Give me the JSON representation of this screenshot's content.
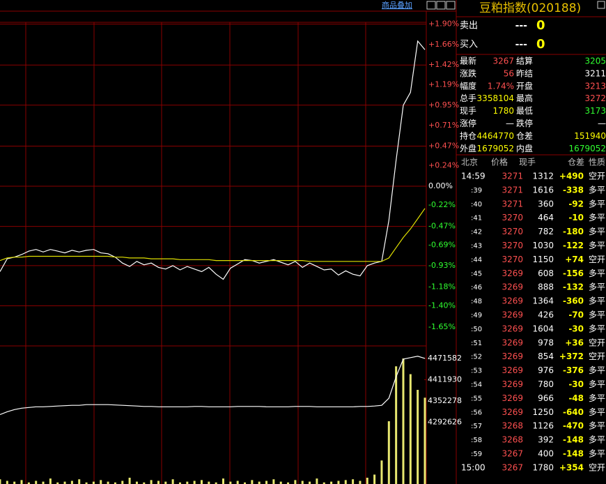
{
  "toolbar": {
    "link": "商品叠加"
  },
  "chart_data": [
    {
      "type": "line",
      "ylim": [
        -1.87,
        1.92
      ],
      "yticks": [
        {
          "value": 1.9,
          "label": "+1.90%"
        },
        {
          "value": 1.66,
          "label": "+1.66%"
        },
        {
          "value": 1.42,
          "label": "+1.42%"
        },
        {
          "value": 1.19,
          "label": "+1.19%"
        },
        {
          "value": 0.95,
          "label": "+0.95%"
        },
        {
          "value": 0.71,
          "label": "+0.71%"
        },
        {
          "value": 0.47,
          "label": "+0.47%"
        },
        {
          "value": 0.24,
          "label": "+0.24%"
        },
        {
          "value": 0,
          "label": "0.00%"
        },
        {
          "value": -0.22,
          "label": "-0.22%"
        },
        {
          "value": -0.47,
          "label": "-0.47%"
        },
        {
          "value": -0.69,
          "label": "-0.69%"
        },
        {
          "value": -0.93,
          "label": "-0.93%"
        },
        {
          "value": -1.18,
          "label": "-1.18%"
        },
        {
          "value": -1.4,
          "label": "-1.40%"
        },
        {
          "value": -1.65,
          "label": "-1.65%"
        }
      ],
      "series": [
        {
          "color": "#ffffff",
          "values": [
            -1.0,
            -0.85,
            -0.83,
            -0.8,
            -0.76,
            -0.74,
            -0.77,
            -0.74,
            -0.76,
            -0.78,
            -0.75,
            -0.77,
            -0.75,
            -0.74,
            -0.78,
            -0.79,
            -0.83,
            -0.9,
            -0.94,
            -0.88,
            -0.92,
            -0.9,
            -0.95,
            -0.97,
            -0.93,
            -0.98,
            -0.94,
            -0.97,
            -1.0,
            -0.95,
            -1.03,
            -1.09,
            -0.96,
            -0.91,
            -0.86,
            -0.87,
            -0.9,
            -0.88,
            -0.86,
            -0.89,
            -0.92,
            -0.88,
            -0.95,
            -0.9,
            -0.94,
            -0.98,
            -0.97,
            -1.04,
            -0.99,
            -1.03,
            -1.05,
            -0.93,
            -0.9,
            -0.88,
            -0.4,
            0.3,
            0.95,
            1.1,
            1.7,
            1.6
          ]
        },
        {
          "color": "#e0e000",
          "values": [
            -0.87,
            -0.84,
            -0.83,
            -0.83,
            -0.82,
            -0.82,
            -0.82,
            -0.82,
            -0.82,
            -0.82,
            -0.82,
            -0.82,
            -0.82,
            -0.82,
            -0.82,
            -0.82,
            -0.83,
            -0.83,
            -0.84,
            -0.84,
            -0.84,
            -0.85,
            -0.85,
            -0.85,
            -0.85,
            -0.86,
            -0.86,
            -0.86,
            -0.86,
            -0.86,
            -0.87,
            -0.87,
            -0.87,
            -0.87,
            -0.87,
            -0.87,
            -0.87,
            -0.87,
            -0.87,
            -0.87,
            -0.87,
            -0.87,
            -0.87,
            -0.88,
            -0.88,
            -0.88,
            -0.88,
            -0.88,
            -0.88,
            -0.88,
            -0.88,
            -0.88,
            -0.88,
            -0.88,
            -0.84,
            -0.72,
            -0.6,
            -0.5,
            -0.38,
            -0.26
          ]
        }
      ]
    },
    {
      "type": "line",
      "ylim": [
        4119000,
        4507000
      ],
      "yticks": [
        4471582,
        4411930,
        4352278,
        4292626
      ],
      "series": [
        {
          "color": "#ffffff",
          "values": [
            4314000,
            4322000,
            4328000,
            4332000,
            4334000,
            4336000,
            4336000,
            4337000,
            4338000,
            4339000,
            4340000,
            4340000,
            4342000,
            4342000,
            4342000,
            4342000,
            4341000,
            4340000,
            4339000,
            4338000,
            4337000,
            4337000,
            4336000,
            4336000,
            4336000,
            4336000,
            4336000,
            4337000,
            4337000,
            4336000,
            4336000,
            4336000,
            4336000,
            4337000,
            4337000,
            4337000,
            4337000,
            4336000,
            4336000,
            4336000,
            4336000,
            4337000,
            4337000,
            4337000,
            4336000,
            4336000,
            4336000,
            4336000,
            4336000,
            4336000,
            4337000,
            4337000,
            4338000,
            4340000,
            4360000,
            4420000,
            4470000,
            4474000,
            4478000,
            4472000
          ]
        }
      ],
      "bars": {
        "color": "#e8e870",
        "values": [
          6,
          4,
          3,
          5,
          2,
          4,
          3,
          7,
          2,
          3,
          4,
          6,
          2,
          3,
          5,
          3,
          2,
          4,
          8,
          3,
          2,
          5,
          4,
          3,
          6,
          2,
          3,
          4,
          5,
          3,
          2,
          7,
          3,
          4,
          2,
          5,
          3,
          4,
          6,
          3,
          2,
          5,
          4,
          3,
          7,
          2,
          3,
          4,
          5,
          6,
          4,
          8,
          12,
          30,
          80,
          150,
          160,
          140,
          120,
          110
        ]
      }
    }
  ],
  "quote": {
    "title": "豆粕指数(020188)",
    "book": [
      {
        "label": "卖出",
        "price": "---",
        "volume": "0"
      },
      {
        "label": "买入",
        "price": "---",
        "volume": "0"
      }
    ],
    "fields": [
      [
        {
          "label": "最新",
          "value": "3267",
          "color": "#ff5050"
        },
        {
          "label": "结算",
          "value": "3205",
          "color": "#30ff30"
        }
      ],
      [
        {
          "label": "涨跌",
          "value": "56",
          "color": "#ff5050"
        },
        {
          "label": "昨结",
          "value": "3211",
          "color": "#ffffff"
        }
      ],
      [
        {
          "label": "幅度",
          "value": "1.74%",
          "color": "#ff5050"
        },
        {
          "label": "开盘",
          "value": "3213",
          "color": "#ff5050"
        }
      ],
      [
        {
          "label": "总手",
          "value": "3358104",
          "color": "#ffff00"
        },
        {
          "label": "最高",
          "value": "3272",
          "color": "#ff5050"
        }
      ],
      [
        {
          "label": "现手",
          "value": "1780",
          "color": "#ffff00"
        },
        {
          "label": "最低",
          "value": "3173",
          "color": "#30ff30"
        }
      ],
      [
        {
          "label": "涨停",
          "value": "—",
          "color": "#ffffff"
        },
        {
          "label": "跌停",
          "value": "—",
          "color": "#ffffff"
        }
      ],
      [
        {
          "label": "持仓",
          "value": "4464770",
          "color": "#ffff00"
        },
        {
          "label": "仓差",
          "value": "151940",
          "color": "#ffff00"
        }
      ],
      [
        {
          "label": "外盘",
          "value": "1679052",
          "color": "#ffff00"
        },
        {
          "label": "内盘",
          "value": "1679052",
          "color": "#30ff30"
        }
      ]
    ]
  },
  "ticks_table": {
    "headers": [
      "北京",
      "价格",
      "现手",
      "仓差",
      "性质"
    ],
    "rows": [
      [
        "14:59",
        "3271",
        "1312",
        "+490",
        "空开"
      ],
      [
        ":39",
        "3271",
        "1616",
        "-338",
        "多平"
      ],
      [
        ":40",
        "3271",
        "360",
        "-92",
        "多平"
      ],
      [
        ":41",
        "3270",
        "464",
        "-10",
        "多平"
      ],
      [
        ":42",
        "3270",
        "782",
        "-180",
        "多平"
      ],
      [
        ":43",
        "3270",
        "1030",
        "-122",
        "多平"
      ],
      [
        ":44",
        "3270",
        "1150",
        "+74",
        "空开"
      ],
      [
        ":45",
        "3269",
        "608",
        "-156",
        "多平"
      ],
      [
        ":46",
        "3269",
        "888",
        "-132",
        "多平"
      ],
      [
        ":48",
        "3269",
        "1364",
        "-360",
        "多平"
      ],
      [
        ":49",
        "3269",
        "426",
        "-70",
        "多平"
      ],
      [
        ":50",
        "3269",
        "1604",
        "-30",
        "多平"
      ],
      [
        ":51",
        "3269",
        "978",
        "+36",
        "空开"
      ],
      [
        ":52",
        "3269",
        "854",
        "+372",
        "空开"
      ],
      [
        ":53",
        "3269",
        "976",
        "-376",
        "多平"
      ],
      [
        ":54",
        "3269",
        "780",
        "-30",
        "多平"
      ],
      [
        ":55",
        "3269",
        "966",
        "-48",
        "多平"
      ],
      [
        ":56",
        "3269",
        "1250",
        "-640",
        "多平"
      ],
      [
        ":57",
        "3268",
        "1126",
        "-470",
        "多平"
      ],
      [
        ":58",
        "3268",
        "392",
        "-148",
        "多平"
      ],
      [
        ":59",
        "3267",
        "400",
        "-148",
        "多平"
      ],
      [
        "15:00",
        "3267",
        "1780",
        "+354",
        "空开"
      ]
    ]
  }
}
